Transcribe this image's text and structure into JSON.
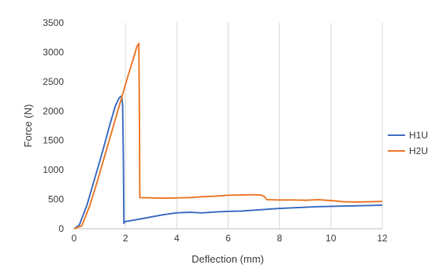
{
  "chart_data": {
    "type": "line",
    "title": "",
    "xlabel": "Deflection (mm)",
    "ylabel": "Force (N)",
    "xlim": [
      0,
      12
    ],
    "ylim": [
      0,
      3500
    ],
    "xticks": [
      0,
      2,
      4,
      6,
      8,
      10,
      12
    ],
    "yticks": [
      0,
      500,
      1000,
      1500,
      2000,
      2500,
      3000,
      3500
    ],
    "grid": "vertical",
    "legend_position": "right",
    "series": [
      {
        "name": "H1U",
        "color": "#4472C4",
        "points": [
          [
            0,
            0
          ],
          [
            0.2,
            60
          ],
          [
            0.5,
            400
          ],
          [
            0.8,
            850
          ],
          [
            1.1,
            1300
          ],
          [
            1.4,
            1780
          ],
          [
            1.6,
            2080
          ],
          [
            1.75,
            2220
          ],
          [
            1.82,
            2250
          ],
          [
            1.86,
            2230
          ],
          [
            1.89,
            2100
          ],
          [
            1.92,
            1200
          ],
          [
            1.94,
            90
          ],
          [
            1.97,
            120
          ],
          [
            2.5,
            160
          ],
          [
            3.0,
            200
          ],
          [
            3.5,
            240
          ],
          [
            4.0,
            270
          ],
          [
            4.5,
            280
          ],
          [
            5.0,
            270
          ],
          [
            5.5,
            285
          ],
          [
            6.0,
            295
          ],
          [
            6.5,
            300
          ],
          [
            7.0,
            315
          ],
          [
            7.5,
            330
          ],
          [
            8.0,
            345
          ],
          [
            8.5,
            355
          ],
          [
            9.0,
            365
          ],
          [
            9.5,
            375
          ],
          [
            10.0,
            380
          ],
          [
            10.5,
            385
          ],
          [
            11.0,
            390
          ],
          [
            11.5,
            395
          ],
          [
            12.0,
            400
          ]
        ]
      },
      {
        "name": "H2U",
        "color": "#ED7D31",
        "points": [
          [
            0,
            0
          ],
          [
            0.3,
            50
          ],
          [
            0.6,
            380
          ],
          [
            0.9,
            800
          ],
          [
            1.2,
            1250
          ],
          [
            1.5,
            1700
          ],
          [
            1.8,
            2150
          ],
          [
            2.1,
            2600
          ],
          [
            2.3,
            2880
          ],
          [
            2.45,
            3100
          ],
          [
            2.52,
            3150
          ],
          [
            2.54,
            2200
          ],
          [
            2.56,
            530
          ],
          [
            3.0,
            525
          ],
          [
            3.5,
            520
          ],
          [
            4.0,
            525
          ],
          [
            4.5,
            530
          ],
          [
            5.0,
            545
          ],
          [
            5.5,
            555
          ],
          [
            6.0,
            570
          ],
          [
            6.5,
            575
          ],
          [
            7.0,
            580
          ],
          [
            7.3,
            570
          ],
          [
            7.42,
            545
          ],
          [
            7.5,
            495
          ],
          [
            8.0,
            490
          ],
          [
            8.5,
            490
          ],
          [
            9.0,
            485
          ],
          [
            9.5,
            495
          ],
          [
            10.0,
            480
          ],
          [
            10.5,
            460
          ],
          [
            11.0,
            455
          ],
          [
            11.5,
            460
          ],
          [
            12.0,
            465
          ]
        ]
      }
    ]
  }
}
